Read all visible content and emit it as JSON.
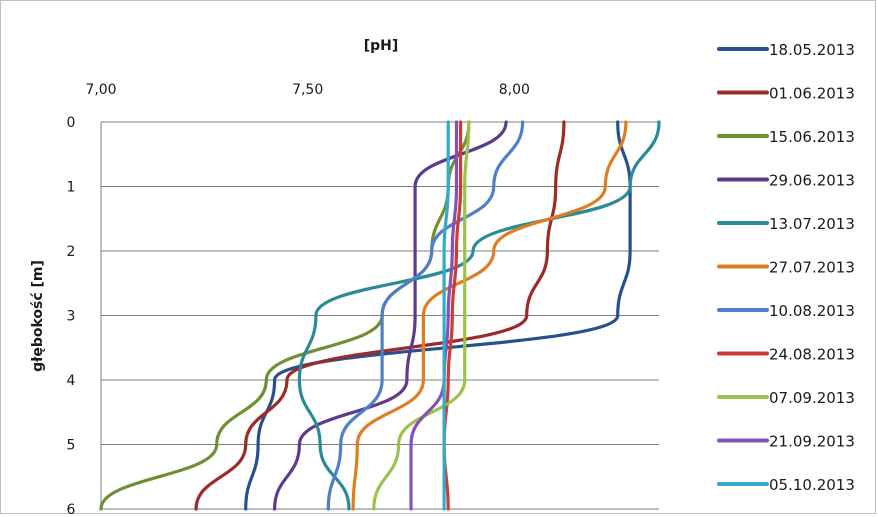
{
  "chart_data": {
    "type": "line",
    "orientation": "depth-profile",
    "xlabel": "[pH]",
    "ylabel": "głębokość [m]",
    "x_axis_position": "top",
    "y_axis_inverted": true,
    "xlim": [
      7.0,
      8.35
    ],
    "ylim": [
      0,
      6
    ],
    "x_ticks": [
      "7,00",
      "7,50",
      "8,00"
    ],
    "x_tick_values": [
      7.0,
      7.5,
      8.0
    ],
    "y_ticks": [
      "0",
      "1",
      "2",
      "3",
      "4",
      "5",
      "6"
    ],
    "y_tick_values": [
      0,
      1,
      2,
      3,
      4,
      5,
      6
    ],
    "grid": "horizontal",
    "legend_position": "right",
    "depth": [
      0,
      1,
      2,
      3,
      4,
      5,
      6
    ],
    "series": [
      {
        "name": "18.05.2013",
        "color": "#2a4f8f",
        "values": [
          8.25,
          8.28,
          8.28,
          8.25,
          7.42,
          7.38,
          7.35
        ]
      },
      {
        "name": "01.06.2013",
        "color": "#9b2a28",
        "values": [
          8.12,
          8.1,
          8.08,
          8.03,
          7.45,
          7.35,
          7.23
        ]
      },
      {
        "name": "15.06.2013",
        "color": "#6f8f32",
        "values": [
          7.89,
          7.84,
          7.8,
          7.68,
          7.4,
          7.28,
          7.0
        ]
      },
      {
        "name": "29.06.2013",
        "color": "#5d3b8c",
        "values": [
          7.98,
          7.76,
          7.76,
          7.76,
          7.74,
          7.48,
          7.42
        ]
      },
      {
        "name": "13.07.2013",
        "color": "#2a8a98",
        "values": [
          8.35,
          8.28,
          7.9,
          7.52,
          7.48,
          7.53,
          7.6
        ]
      },
      {
        "name": "27.07.2013",
        "color": "#e07d21",
        "values": [
          8.27,
          8.22,
          7.95,
          7.78,
          7.78,
          7.62,
          7.61
        ]
      },
      {
        "name": "10.08.2013",
        "color": "#4f7fc4",
        "values": [
          8.02,
          7.95,
          7.8,
          7.68,
          7.68,
          7.58,
          7.55
        ]
      },
      {
        "name": "24.08.2013",
        "color": "#cc3b35",
        "values": [
          7.87,
          7.87,
          7.86,
          7.85,
          7.84,
          7.83,
          7.84
        ]
      },
      {
        "name": "07.09.2013",
        "color": "#9bc24a",
        "values": [
          7.89,
          7.88,
          7.88,
          7.88,
          7.88,
          7.72,
          7.66
        ]
      },
      {
        "name": "21.09.2013",
        "color": "#8451b5",
        "values": [
          7.86,
          7.86,
          7.85,
          7.84,
          7.83,
          7.75,
          7.75
        ]
      },
      {
        "name": "05.10.2013",
        "color": "#35a9c8",
        "values": [
          7.84,
          7.84,
          7.83,
          7.83,
          7.83,
          7.83,
          7.83
        ]
      }
    ]
  }
}
